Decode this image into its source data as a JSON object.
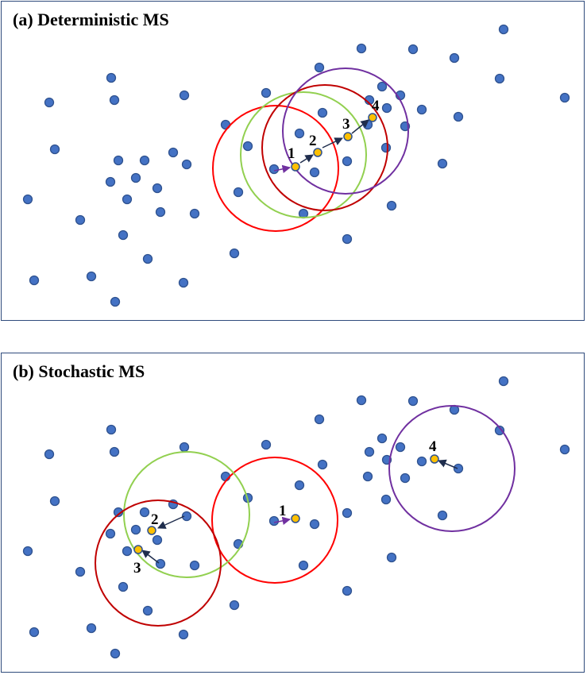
{
  "panels": [
    {
      "title": "(a) Deterministic MS",
      "step_labels": [
        "1",
        "2",
        "3",
        "4"
      ]
    },
    {
      "title": "(b) Stochastic MS",
      "step_labels": [
        "1",
        "2",
        "3",
        "4"
      ]
    }
  ],
  "colors": {
    "point_fill": "#4472c4",
    "point_stroke": "#2f528f",
    "center_fill": "#ffc000",
    "arrow": "#1f2d4d",
    "arrow_first": "#7030a0",
    "circle_step1": "#ff0000",
    "circle_step2": "#92d050",
    "circle_step3": "#c00000",
    "circle_step4": "#7030a0"
  }
}
